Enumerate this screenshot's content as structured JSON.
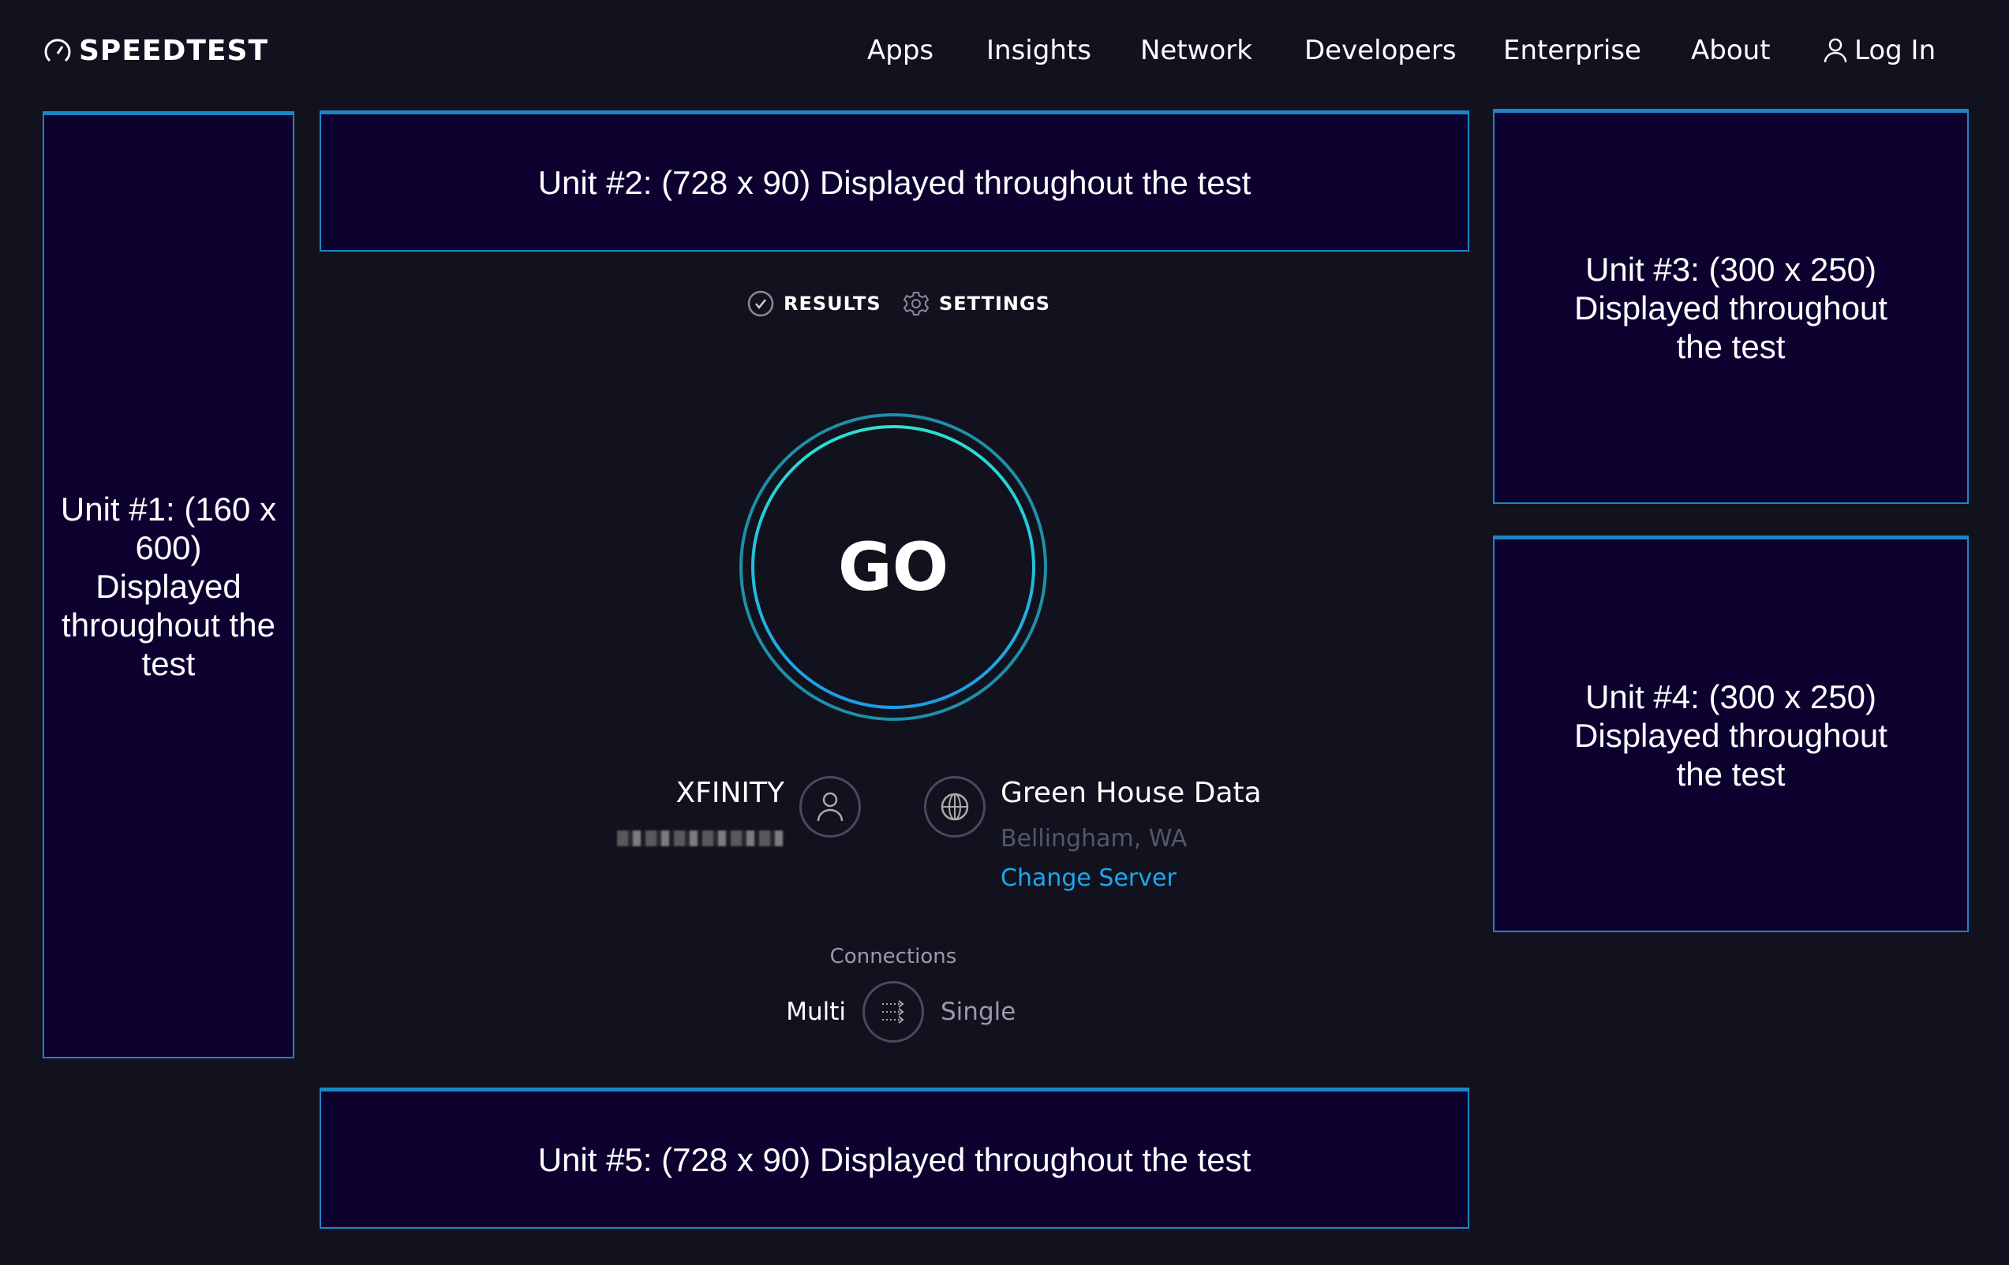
{
  "header": {
    "logo_text": "SPEEDTEST",
    "nav": [
      "Apps",
      "Insights",
      "Network",
      "Developers",
      "Enterprise",
      "About"
    ],
    "login_label": "Log In"
  },
  "ads": {
    "unit1": "Unit #1: (160 x 600) Displayed throughout the test",
    "unit2": "Unit #2: (728 x 90) Displayed throughout the test",
    "unit3": "Unit #3: (300 x 250) Displayed throughout the test",
    "unit4": "Unit #4: (300 x 250) Displayed throughout the test",
    "unit5": "Unit #5: (728 x 90) Displayed throughout the test"
  },
  "tabs": {
    "results": "RESULTS",
    "settings": "SETTINGS"
  },
  "go_label": "GO",
  "isp": {
    "name": "XFINITY"
  },
  "server": {
    "name": "Green House Data",
    "location": "Bellingham, WA",
    "change_label": "Change Server"
  },
  "connections": {
    "label": "Connections",
    "multi": "Multi",
    "single": "Single",
    "selected": "Multi"
  },
  "colors": {
    "background": "#11121d",
    "ad_fill": "#0d0130",
    "ad_border": "#1a86c4",
    "link": "#1fa6f0",
    "ring_inner_top": "#2ee0cf",
    "ring_inner_bottom": "#1e9be8",
    "ring_outer": "#1f8fa8"
  }
}
